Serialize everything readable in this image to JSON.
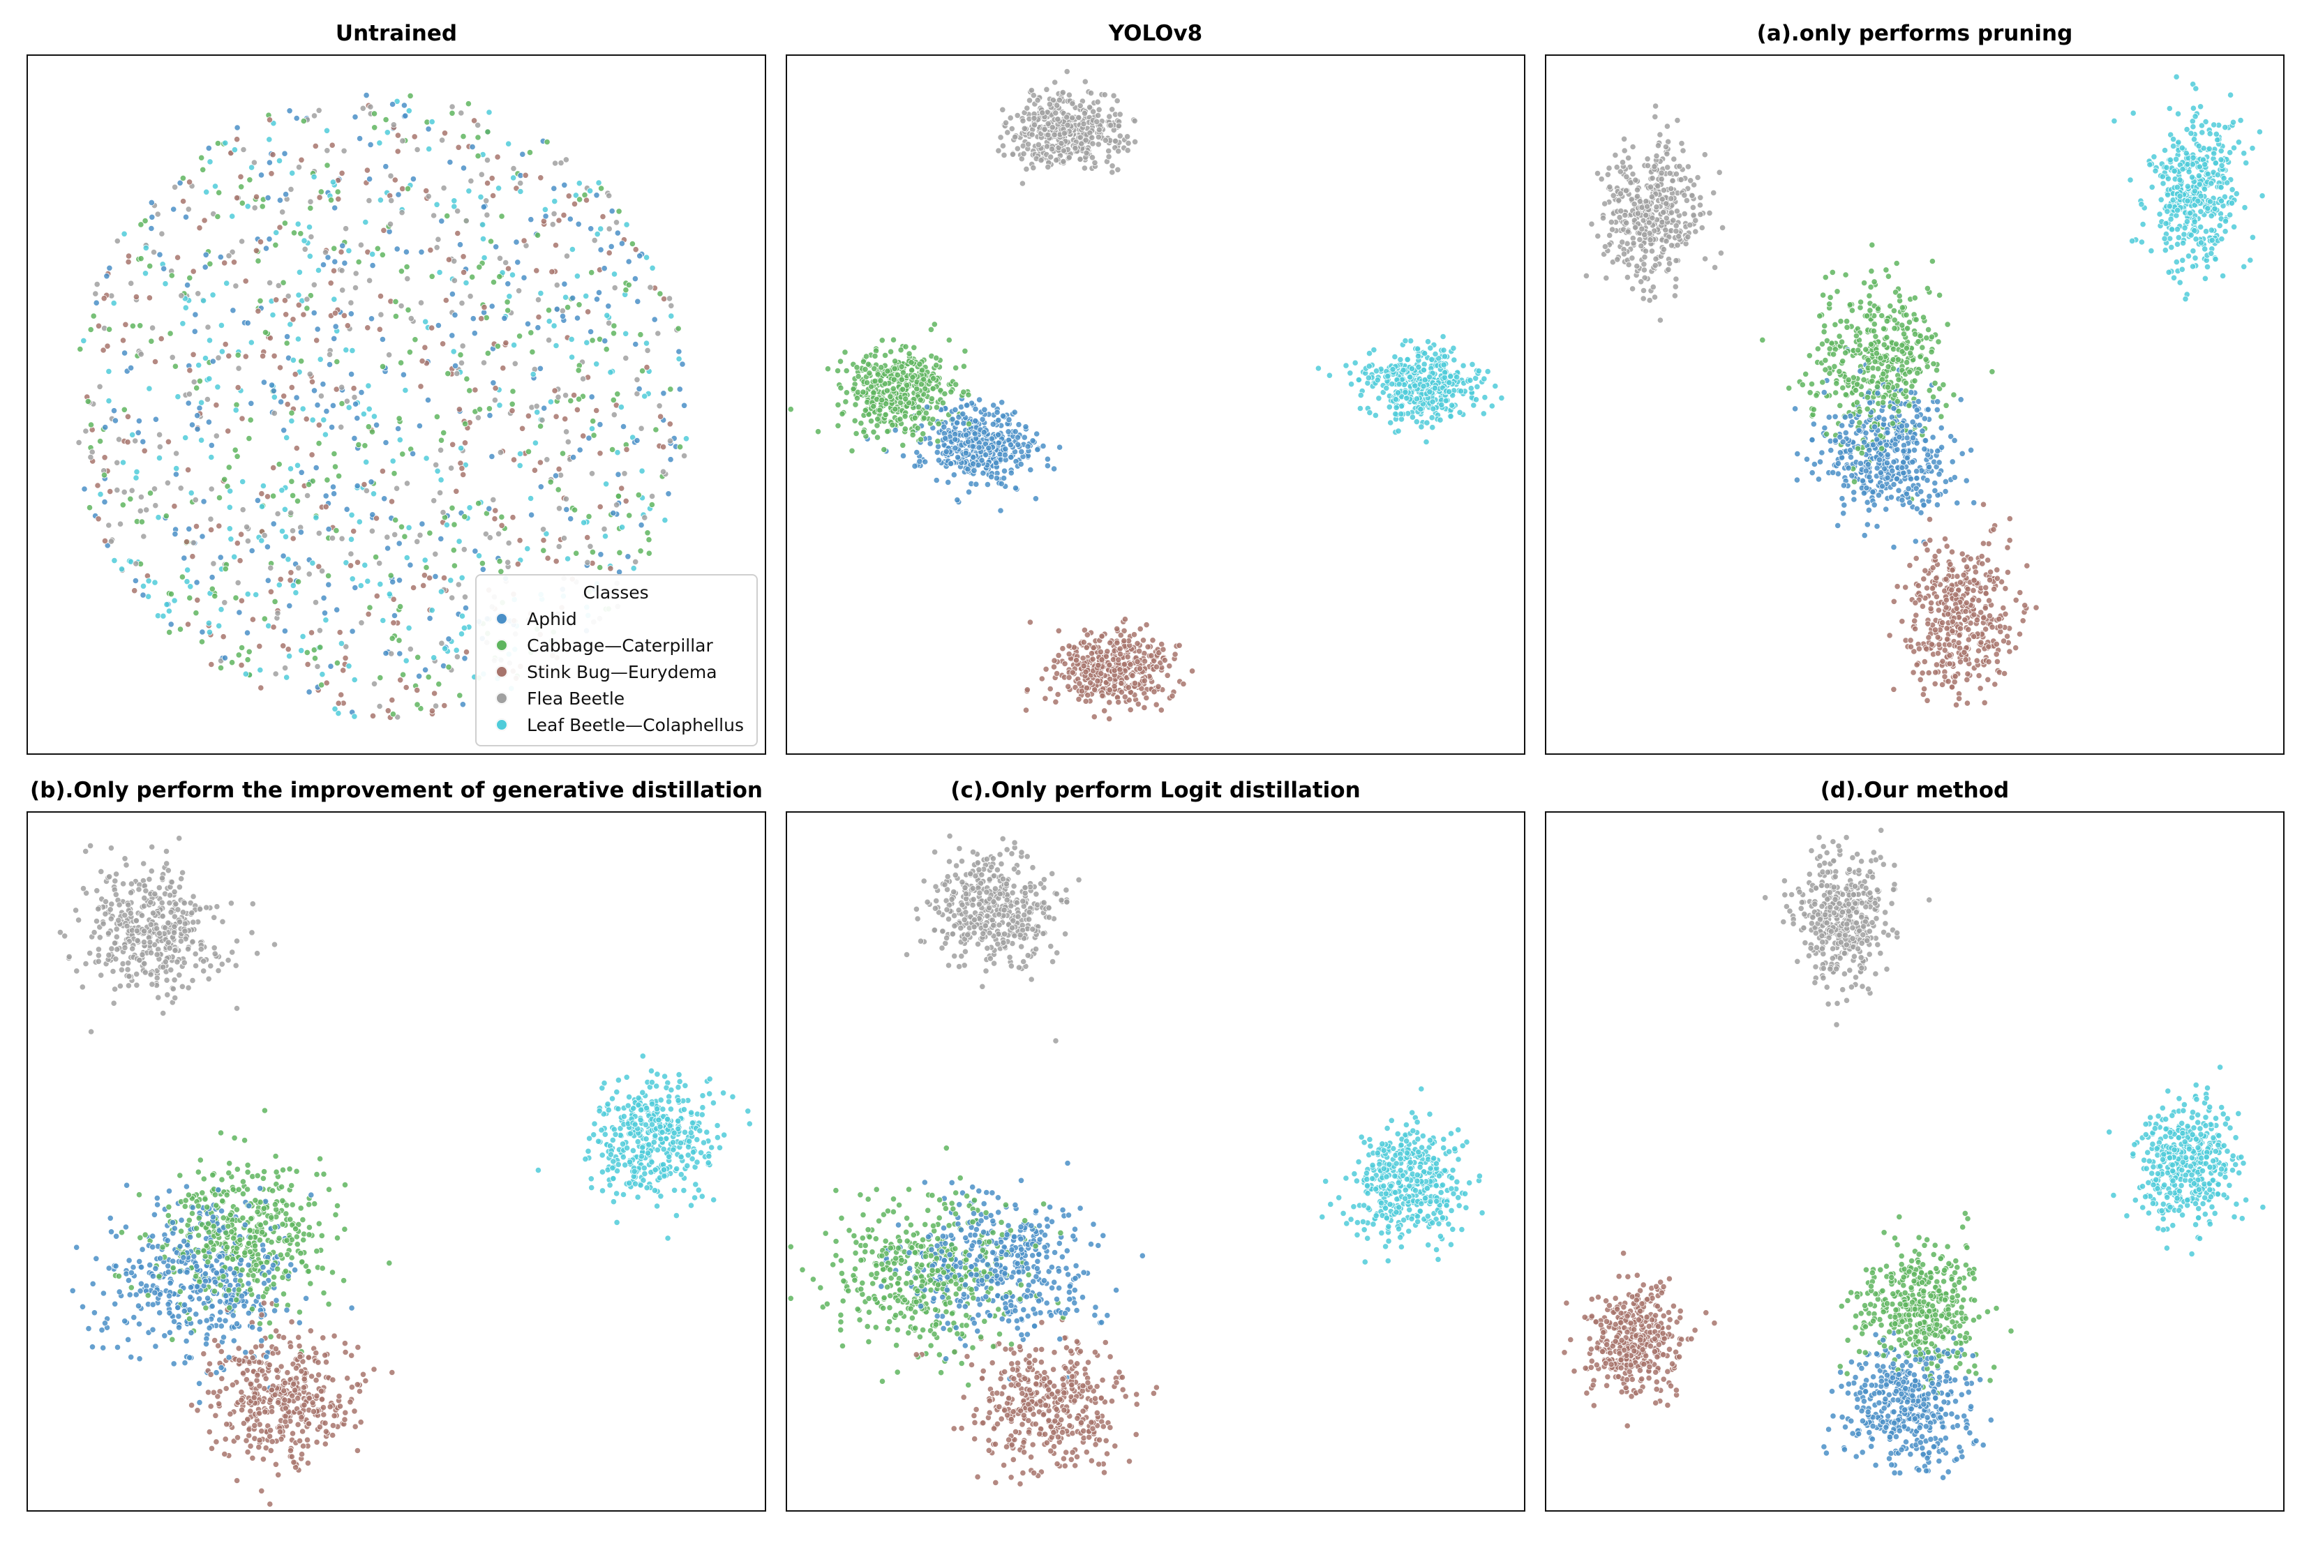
{
  "figure": {
    "legend_title": "Classes",
    "classes": [
      {
        "name": "Aphid",
        "color": "#4a8fc7"
      },
      {
        "name": "Cabbage—Caterpillar",
        "color": "#5fb55f"
      },
      {
        "name": "Stink Bug—Eurydema",
        "color": "#a7746c"
      },
      {
        "name": "Flea Beetle",
        "color": "#a0a0a0"
      },
      {
        "name": "Leaf Beetle—Colaphellus",
        "color": "#4fcbd9"
      }
    ]
  },
  "chart_data": [
    {
      "type": "scatter",
      "title": "Untrained",
      "xlim": [
        0,
        100
      ],
      "ylim": [
        0,
        100
      ],
      "legend": "bottom-right",
      "clusters": [
        {
          "class": "Aphid",
          "center": [
            48,
            50
          ],
          "spread": [
            42,
            45
          ],
          "shape": "disk",
          "n": 330
        },
        {
          "class": "Cabbage—Caterpillar",
          "center": [
            48,
            50
          ],
          "spread": [
            42,
            45
          ],
          "shape": "disk",
          "n": 330
        },
        {
          "class": "Stink Bug—Eurydema",
          "center": [
            48,
            50
          ],
          "spread": [
            42,
            45
          ],
          "shape": "disk",
          "n": 330
        },
        {
          "class": "Flea Beetle",
          "center": [
            48,
            50
          ],
          "spread": [
            42,
            45
          ],
          "shape": "disk",
          "n": 330
        },
        {
          "class": "Leaf Beetle—Colaphellus",
          "center": [
            48,
            50
          ],
          "spread": [
            42,
            45
          ],
          "shape": "disk",
          "n": 330
        }
      ]
    },
    {
      "type": "scatter",
      "title": "YOLOv8",
      "xlim": [
        0,
        100
      ],
      "ylim": [
        0,
        100
      ],
      "clusters": [
        {
          "class": "Flea Beetle",
          "center": [
            38,
            89
          ],
          "spread": [
            9,
            6.5
          ],
          "n": 420
        },
        {
          "class": "Cabbage—Caterpillar",
          "center": [
            15,
            52
          ],
          "spread": [
            9,
            7
          ],
          "n": 420
        },
        {
          "class": "Aphid",
          "center": [
            26,
            44
          ],
          "spread": [
            9,
            6.5
          ],
          "n": 420
        },
        {
          "class": "Leaf Beetle—Colaphellus",
          "center": [
            86,
            53
          ],
          "spread": [
            9.5,
            6.5
          ],
          "n": 420
        },
        {
          "class": "Stink Bug—Eurydema",
          "center": [
            44,
            12
          ],
          "spread": [
            9.5,
            6.5
          ],
          "n": 420
        }
      ]
    },
    {
      "type": "scatter",
      "title": "(a).only performs pruning",
      "xlim": [
        0,
        100
      ],
      "ylim": [
        0,
        100
      ],
      "clusters": [
        {
          "class": "Flea Beetle",
          "center": [
            14,
            77
          ],
          "spread": [
            8,
            12.5
          ],
          "n": 420
        },
        {
          "class": "Leaf Beetle—Colaphellus",
          "center": [
            88,
            81
          ],
          "spread": [
            8,
            13
          ],
          "n": 420
        },
        {
          "class": "Cabbage—Caterpillar",
          "center": [
            45,
            56
          ],
          "spread": [
            11,
            14
          ],
          "n": 420
        },
        {
          "class": "Aphid",
          "center": [
            46,
            43
          ],
          "spread": [
            10.5,
            11
          ],
          "n": 420
        },
        {
          "class": "Stink Bug—Eurydema",
          "center": [
            56,
            19
          ],
          "spread": [
            8.5,
            13.5
          ],
          "n": 420
        }
      ]
    },
    {
      "type": "scatter",
      "title": "(b).Only perform the improvement of generative distillation",
      "xlim": [
        0,
        100
      ],
      "ylim": [
        0,
        100
      ],
      "clusters": [
        {
          "class": "Flea Beetle",
          "center": [
            17,
            83
          ],
          "spread": [
            11,
            11
          ],
          "n": 420
        },
        {
          "class": "Leaf Beetle—Colaphellus",
          "center": [
            85,
            53
          ],
          "spread": [
            10,
            10.5
          ],
          "n": 420
        },
        {
          "class": "Aphid",
          "center": [
            23,
            33
          ],
          "spread": [
            15,
            13
          ],
          "n": 420
        },
        {
          "class": "Cabbage—Caterpillar",
          "center": [
            29,
            39
          ],
          "spread": [
            15,
            13
          ],
          "n": 420
        },
        {
          "class": "Stink Bug—Eurydema",
          "center": [
            34,
            16
          ],
          "spread": [
            11.5,
            11
          ],
          "n": 420
        }
      ]
    },
    {
      "type": "scatter",
      "title": "(c).Only perform Logit distillation",
      "xlim": [
        0,
        100
      ],
      "ylim": [
        0,
        100
      ],
      "clusters": [
        {
          "class": "Flea Beetle",
          "center": [
            28,
            86
          ],
          "spread": [
            10.5,
            10
          ],
          "n": 420
        },
        {
          "class": "Leaf Beetle—Colaphellus",
          "center": [
            84,
            47
          ],
          "spread": [
            10,
            9.5
          ],
          "n": 420
        },
        {
          "class": "Cabbage—Caterpillar",
          "center": [
            19,
            34
          ],
          "spread": [
            15,
            13
          ],
          "n": 420
        },
        {
          "class": "Aphid",
          "center": [
            29,
            35
          ],
          "spread": [
            15,
            12
          ],
          "n": 420
        },
        {
          "class": "Stink Bug—Eurydema",
          "center": [
            35,
            15
          ],
          "spread": [
            11.5,
            10.5
          ],
          "n": 420
        }
      ]
    },
    {
      "type": "scatter",
      "title": "(d).Our method",
      "xlim": [
        0,
        100
      ],
      "ylim": [
        0,
        100
      ],
      "clusters": [
        {
          "class": "Flea Beetle",
          "center": [
            40,
            85
          ],
          "spread": [
            7.5,
            10.5
          ],
          "n": 420
        },
        {
          "class": "Leaf Beetle—Colaphellus",
          "center": [
            87,
            50
          ],
          "spread": [
            8,
            10.5
          ],
          "n": 420
        },
        {
          "class": "Stink Bug—Eurydema",
          "center": [
            12,
            24
          ],
          "spread": [
            7.5,
            9.5
          ],
          "n": 420
        },
        {
          "class": "Cabbage—Caterpillar",
          "center": [
            51,
            29
          ],
          "spread": [
            10,
            10.5
          ],
          "n": 420
        },
        {
          "class": "Aphid",
          "center": [
            49,
            15
          ],
          "spread": [
            10,
            10.5
          ],
          "n": 420
        }
      ]
    }
  ]
}
